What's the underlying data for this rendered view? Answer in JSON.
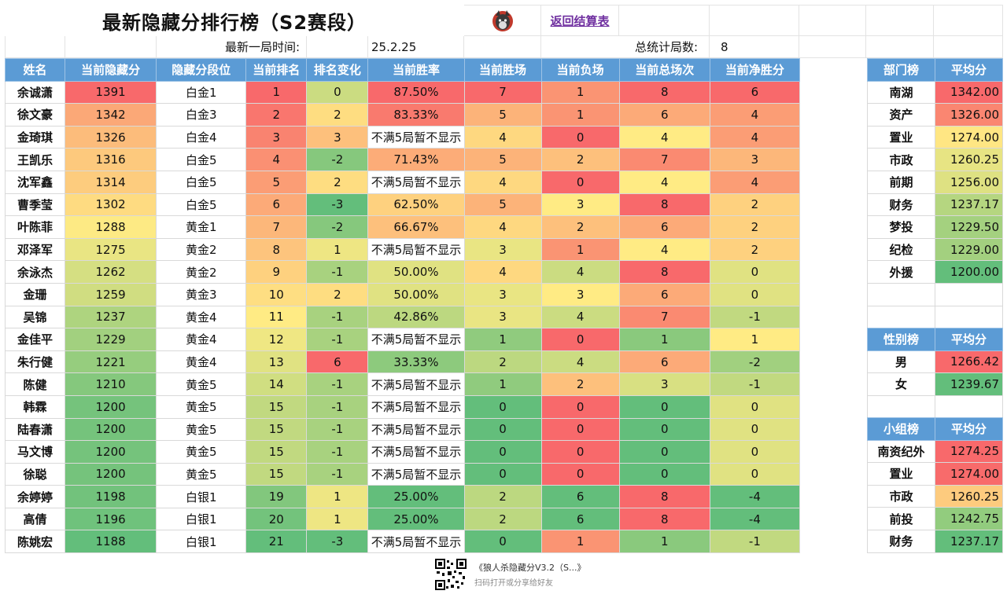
{
  "header": {
    "title": "最新隐藏分排行榜（S2赛段）",
    "back_link": "返回结算表",
    "last_game_label": "最新一局时间:",
    "last_game_value": "25.2.25",
    "total_games_label": "总统计局数:",
    "total_games_value": "8",
    "logo_icon": "wolf-logo-icon"
  },
  "main_table": {
    "columns": [
      "姓名",
      "当前隐藏分",
      "隐藏分段位",
      "当前排名",
      "排名变化",
      "当前胜率",
      "当前胜场",
      "当前负场",
      "当前总场次",
      "当前净胜分"
    ],
    "rows": [
      {
        "name": "余诚潇",
        "score": "1391",
        "tier": "白金1",
        "rank": "1",
        "change": "0",
        "winrate": "87.50%",
        "wins": "7",
        "losses": "1",
        "total": "8",
        "net": "6"
      },
      {
        "name": "徐文豪",
        "score": "1342",
        "tier": "白金3",
        "rank": "2",
        "change": "2",
        "winrate": "83.33%",
        "wins": "5",
        "losses": "1",
        "total": "6",
        "net": "4"
      },
      {
        "name": "金琦琪",
        "score": "1326",
        "tier": "白金4",
        "rank": "3",
        "change": "3",
        "winrate": "不满5局暂不显示",
        "wins": "4",
        "losses": "0",
        "total": "4",
        "net": "4"
      },
      {
        "name": "王凯乐",
        "score": "1316",
        "tier": "白金5",
        "rank": "4",
        "change": "-2",
        "winrate": "71.43%",
        "wins": "5",
        "losses": "2",
        "total": "7",
        "net": "3"
      },
      {
        "name": "沈军鑫",
        "score": "1314",
        "tier": "白金5",
        "rank": "5",
        "change": "2",
        "winrate": "不满5局暂不显示",
        "wins": "4",
        "losses": "0",
        "total": "4",
        "net": "4"
      },
      {
        "name": "曹季莹",
        "score": "1302",
        "tier": "白金5",
        "rank": "6",
        "change": "-3",
        "winrate": "62.50%",
        "wins": "5",
        "losses": "3",
        "total": "8",
        "net": "2"
      },
      {
        "name": "叶陈菲",
        "score": "1288",
        "tier": "黄金1",
        "rank": "7",
        "change": "-2",
        "winrate": "66.67%",
        "wins": "4",
        "losses": "2",
        "total": "6",
        "net": "2"
      },
      {
        "name": "邓泽军",
        "score": "1275",
        "tier": "黄金2",
        "rank": "8",
        "change": "1",
        "winrate": "不满5局暂不显示",
        "wins": "3",
        "losses": "1",
        "total": "4",
        "net": "2"
      },
      {
        "name": "余泳杰",
        "score": "1262",
        "tier": "黄金2",
        "rank": "9",
        "change": "-1",
        "winrate": "50.00%",
        "wins": "4",
        "losses": "4",
        "total": "8",
        "net": "0"
      },
      {
        "name": "金珊",
        "score": "1259",
        "tier": "黄金3",
        "rank": "10",
        "change": "2",
        "winrate": "50.00%",
        "wins": "3",
        "losses": "3",
        "total": "6",
        "net": "0"
      },
      {
        "name": "吴锦",
        "score": "1237",
        "tier": "黄金4",
        "rank": "11",
        "change": "-1",
        "winrate": "42.86%",
        "wins": "3",
        "losses": "4",
        "total": "7",
        "net": "-1"
      },
      {
        "name": "金佳平",
        "score": "1229",
        "tier": "黄金4",
        "rank": "12",
        "change": "-1",
        "winrate": "不满5局暂不显示",
        "wins": "1",
        "losses": "0",
        "total": "1",
        "net": "1"
      },
      {
        "name": "朱行健",
        "score": "1221",
        "tier": "黄金4",
        "rank": "13",
        "change": "6",
        "winrate": "33.33%",
        "wins": "2",
        "losses": "4",
        "total": "6",
        "net": "-2"
      },
      {
        "name": "陈健",
        "score": "1210",
        "tier": "黄金5",
        "rank": "14",
        "change": "-1",
        "winrate": "不满5局暂不显示",
        "wins": "1",
        "losses": "2",
        "total": "3",
        "net": "-1"
      },
      {
        "name": "韩霖",
        "score": "1200",
        "tier": "黄金5",
        "rank": "15",
        "change": "-1",
        "winrate": "不满5局暂不显示",
        "wins": "0",
        "losses": "0",
        "total": "0",
        "net": "0"
      },
      {
        "name": "陆春潇",
        "score": "1200",
        "tier": "黄金5",
        "rank": "15",
        "change": "-1",
        "winrate": "不满5局暂不显示",
        "wins": "0",
        "losses": "0",
        "total": "0",
        "net": "0"
      },
      {
        "name": "马文博",
        "score": "1200",
        "tier": "黄金5",
        "rank": "15",
        "change": "-1",
        "winrate": "不满5局暂不显示",
        "wins": "0",
        "losses": "0",
        "total": "0",
        "net": "0"
      },
      {
        "name": "徐聪",
        "score": "1200",
        "tier": "黄金5",
        "rank": "15",
        "change": "-1",
        "winrate": "不满5局暂不显示",
        "wins": "0",
        "losses": "0",
        "total": "0",
        "net": "0"
      },
      {
        "name": "余婷婷",
        "score": "1198",
        "tier": "白银1",
        "rank": "19",
        "change": "1",
        "winrate": "25.00%",
        "wins": "2",
        "losses": "6",
        "total": "8",
        "net": "-4"
      },
      {
        "name": "高倩",
        "score": "1196",
        "tier": "白银1",
        "rank": "20",
        "change": "1",
        "winrate": "25.00%",
        "wins": "2",
        "losses": "6",
        "total": "8",
        "net": "-4"
      },
      {
        "name": "陈姚宏",
        "score": "1188",
        "tier": "白银1",
        "rank": "21",
        "change": "-3",
        "winrate": "不满5局暂不显示",
        "wins": "0",
        "losses": "1",
        "total": "1",
        "net": "-1"
      }
    ]
  },
  "dept_table": {
    "header": [
      "部门榜",
      "平均分"
    ],
    "rows": [
      {
        "name": "南湖",
        "avg": "1342.00"
      },
      {
        "name": "资产",
        "avg": "1326.00"
      },
      {
        "name": "置业",
        "avg": "1274.00"
      },
      {
        "name": "市政",
        "avg": "1260.25"
      },
      {
        "name": "前期",
        "avg": "1256.00"
      },
      {
        "name": "财务",
        "avg": "1237.17"
      },
      {
        "name": "梦投",
        "avg": "1229.50"
      },
      {
        "name": "纪检",
        "avg": "1229.00"
      },
      {
        "name": "外援",
        "avg": "1200.00"
      }
    ]
  },
  "gender_table": {
    "header": [
      "性别榜",
      "平均分"
    ],
    "rows": [
      {
        "name": "男",
        "avg": "1266.42"
      },
      {
        "name": "女",
        "avg": "1239.67"
      }
    ]
  },
  "group_table": {
    "header": [
      "小组榜",
      "平均分"
    ],
    "rows": [
      {
        "name": "南资纪外",
        "avg": "1274.25"
      },
      {
        "name": "置业",
        "avg": "1274.00"
      },
      {
        "name": "市政",
        "avg": "1260.25"
      },
      {
        "name": "前投",
        "avg": "1242.75"
      },
      {
        "name": "财务",
        "avg": "1237.17"
      }
    ]
  },
  "footer": {
    "share_title": "《狼人杀隐藏分V3.2（S...》",
    "share_hint": "扫码打开或分享给好友",
    "qr_icon": "qr-code-icon"
  },
  "colors": {
    "header_blue": "#5b9bd5",
    "scale_red": "#f8696b",
    "scale_yellow": "#ffeb84",
    "scale_green": "#63be7b",
    "link_purple": "#7030a0"
  }
}
